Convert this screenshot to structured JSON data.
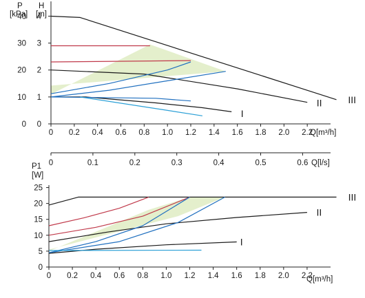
{
  "chart_data": [
    {
      "type": "line",
      "name_id": "pressure-head",
      "yleft": {
        "label_line1": "P",
        "label_line2": "[kPa]",
        "ticks": [
          0,
          10,
          20,
          30,
          40
        ],
        "range": [
          0,
          40
        ]
      },
      "yright": {
        "label_line1": "H",
        "label_line2": "[m]",
        "ticks": [
          0,
          1,
          2,
          3,
          4
        ],
        "range": [
          0,
          4
        ]
      },
      "x": {
        "label": "Q[m³/h]",
        "ticks": [
          0,
          0.2,
          0.4,
          0.6,
          0.8,
          1.0,
          1.2,
          1.4,
          1.6,
          1.8,
          2.0,
          2.2
        ],
        "tick_labels": [
          "0",
          "0.2",
          "0.4",
          "0.6",
          "0.8",
          "1.0",
          "1.2",
          "1.4",
          "1.6",
          "1.8",
          "2.0",
          "2.2"
        ],
        "range": [
          0,
          2.4
        ]
      },
      "secondary_x": {
        "label": "Q[l/s]",
        "ticks": [
          0,
          0.1,
          0.2,
          0.3,
          0.4,
          0.5,
          0.6
        ],
        "tick_labels": [
          "0",
          "0.1",
          "0.2",
          "0.3",
          "0.4",
          "0.5",
          "0.6"
        ]
      },
      "shaded_region": {
        "color": "#e4efcc",
        "points": [
          [
            0,
            1.1
          ],
          [
            0.85,
            2.95
          ],
          [
            1.5,
            1.95
          ],
          [
            0,
            1.42
          ]
        ]
      },
      "series": [
        {
          "name": "III",
          "color": "#1a1a1a",
          "points": [
            [
              0,
              4.0
            ],
            [
              0.25,
              3.95
            ],
            [
              2.45,
              0.9
            ]
          ],
          "label_at": [
            2.55,
            0.9
          ]
        },
        {
          "name": "II",
          "color": "#1a1a1a",
          "points": [
            [
              0,
              2.0
            ],
            [
              0.8,
              1.85
            ],
            [
              1.6,
              1.3
            ],
            [
              2.2,
              0.8
            ]
          ],
          "label_at": [
            2.28,
            0.78
          ]
        },
        {
          "name": "I",
          "color": "#1a1a1a",
          "points": [
            [
              0,
              1.0
            ],
            [
              0.3,
              1.0
            ],
            [
              0.9,
              0.78
            ],
            [
              1.3,
              0.6
            ],
            [
              1.55,
              0.45
            ]
          ],
          "label_at": [
            1.63,
            0.38
          ]
        },
        {
          "name": "",
          "color": "#c0394a",
          "points": [
            [
              0,
              2.9
            ],
            [
              0.85,
              2.9
            ]
          ]
        },
        {
          "name": "",
          "color": "#c0394a",
          "points": [
            [
              0,
              2.3
            ],
            [
              1.2,
              2.35
            ]
          ]
        },
        {
          "name": "",
          "color": "#1f6fbf",
          "points": [
            [
              0,
              1.12
            ],
            [
              0.5,
              1.5
            ],
            [
              1.0,
              2.0
            ],
            [
              1.2,
              2.3
            ]
          ]
        },
        {
          "name": "",
          "color": "#1f6fbf",
          "points": [
            [
              0,
              1.0
            ],
            [
              0.5,
              1.25
            ],
            [
              1.0,
              1.6
            ],
            [
              1.5,
              1.95
            ]
          ]
        },
        {
          "name": "",
          "color": "#1f6fbf",
          "points": [
            [
              0,
              1.0
            ],
            [
              0.9,
              0.95
            ],
            [
              1.2,
              0.85
            ]
          ]
        },
        {
          "name": "",
          "color": "#2a9fd6",
          "points": [
            [
              0.25,
              1.0
            ],
            [
              1.0,
              0.5
            ],
            [
              1.3,
              0.3
            ]
          ]
        }
      ]
    },
    {
      "type": "line",
      "name_id": "power",
      "yleft": {
        "label_line1": "P1",
        "label_line2": "[W]",
        "ticks": [
          0,
          5,
          10,
          15,
          20,
          25
        ],
        "range": [
          0,
          25
        ]
      },
      "x": {
        "label": "Q[m³/h]",
        "ticks": [
          0,
          0.2,
          0.4,
          0.6,
          0.8,
          1.0,
          1.2,
          1.4,
          1.6,
          1.8,
          2.0,
          2.2
        ],
        "tick_labels": [
          "0",
          "0.2",
          "0.4",
          "0.6",
          "0.8",
          "1.0",
          "1.2",
          "1.4",
          "1.6",
          "1.8",
          "2.0",
          "2.2"
        ],
        "range": [
          0,
          2.4
        ]
      },
      "shaded_region": {
        "color": "#e4efcc",
        "points": [
          [
            0,
            5.0
          ],
          [
            0.85,
            18.0
          ],
          [
            1.2,
            22.0
          ],
          [
            1.5,
            22.0
          ],
          [
            1.1,
            16.0
          ],
          [
            0,
            5.5
          ]
        ]
      },
      "series": [
        {
          "name": "III",
          "color": "#1a1a1a",
          "points": [
            [
              0,
              19.5
            ],
            [
              0.25,
              22.0
            ],
            [
              2.45,
              22.0
            ]
          ],
          "label_at": [
            2.55,
            22.0
          ]
        },
        {
          "name": "II",
          "color": "#1a1a1a",
          "points": [
            [
              0,
              8.0
            ],
            [
              0.5,
              11.0
            ],
            [
              1.0,
              13.6
            ],
            [
              1.6,
              15.6
            ],
            [
              2.2,
              17.2
            ]
          ],
          "label_at": [
            2.28,
            17.2
          ]
        },
        {
          "name": "I",
          "color": "#1a1a1a",
          "points": [
            [
              0,
              4.3
            ],
            [
              0.4,
              5.6
            ],
            [
              1.0,
              7.0
            ],
            [
              1.6,
              7.9
            ]
          ],
          "label_at": [
            1.63,
            7.9
          ]
        },
        {
          "name": "",
          "color": "#c0394a",
          "points": [
            [
              0,
              13.0
            ],
            [
              0.3,
              15.5
            ],
            [
              0.6,
              18.5
            ],
            [
              0.85,
              22.0
            ]
          ]
        },
        {
          "name": "",
          "color": "#c0394a",
          "points": [
            [
              0,
              10.0
            ],
            [
              0.4,
              12.5
            ],
            [
              0.8,
              16.0
            ],
            [
              1.2,
              22.0
            ]
          ]
        },
        {
          "name": "",
          "color": "#1f6fbf",
          "points": [
            [
              0,
              4.5
            ],
            [
              0.4,
              8.0
            ],
            [
              0.8,
              13.0
            ],
            [
              1.2,
              22.0
            ]
          ]
        },
        {
          "name": "",
          "color": "#1f6fbf",
          "points": [
            [
              0,
              4.5
            ],
            [
              0.6,
              8.0
            ],
            [
              1.1,
              14.0
            ],
            [
              1.5,
              22.0
            ]
          ]
        },
        {
          "name": "",
          "color": "#2a9fd6",
          "points": [
            [
              0,
              5.2
            ],
            [
              1.3,
              5.3
            ]
          ]
        }
      ]
    }
  ]
}
